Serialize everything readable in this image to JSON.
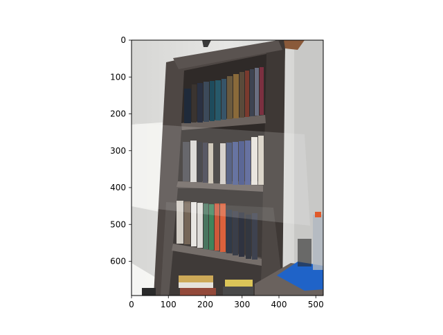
{
  "figure": {
    "xticks": [
      "0",
      "100",
      "200",
      "300",
      "400",
      "500"
    ],
    "yticks": [
      "0",
      "100",
      "200",
      "300",
      "400",
      "500",
      "600"
    ],
    "image": {
      "description_icon": "bookshelf-photo",
      "colors": {
        "wall": "#dcdcda",
        "shelf_wood": "#4e4744",
        "shelf_dark": "#2f2a28"
      }
    }
  }
}
